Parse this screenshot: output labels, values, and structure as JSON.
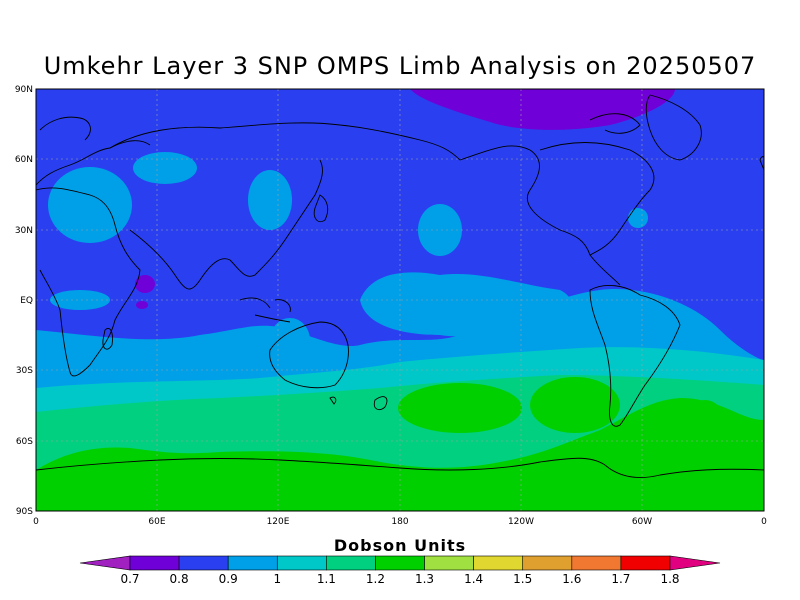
{
  "map": {
    "title": "Umkehr Layer 3 SNP OMPS Limb Analysis on 20250507",
    "lat_labels": [
      "90N",
      "60N",
      "30N",
      "EQ",
      "30S",
      "60S",
      "90S"
    ],
    "lon_labels": [
      "0",
      "60E",
      "120E",
      "180",
      "120W",
      "60W",
      "0"
    ],
    "units_label": "Dobson Units",
    "colorbar": {
      "labels": [
        "0.7",
        "0.8",
        "0.9",
        "1",
        "1.1",
        "1.2",
        "1.3",
        "1.4",
        "1.5",
        "1.6",
        "1.7",
        "1.8"
      ],
      "colors": [
        "#a020c0",
        "#7000d8",
        "#2a40f0",
        "#00a0e8",
        "#00c8c8",
        "#00d080",
        "#00d000",
        "#a0e040",
        "#e0d830",
        "#e0a030",
        "#f07830",
        "#f00000",
        "#e00080"
      ]
    },
    "palette": {
      "bg": "#2a40f0",
      "low": "#7000d8",
      "mid": "#00a0e8",
      "teal": "#00c8c8",
      "green1": "#00d080",
      "green2": "#00d000"
    }
  }
}
